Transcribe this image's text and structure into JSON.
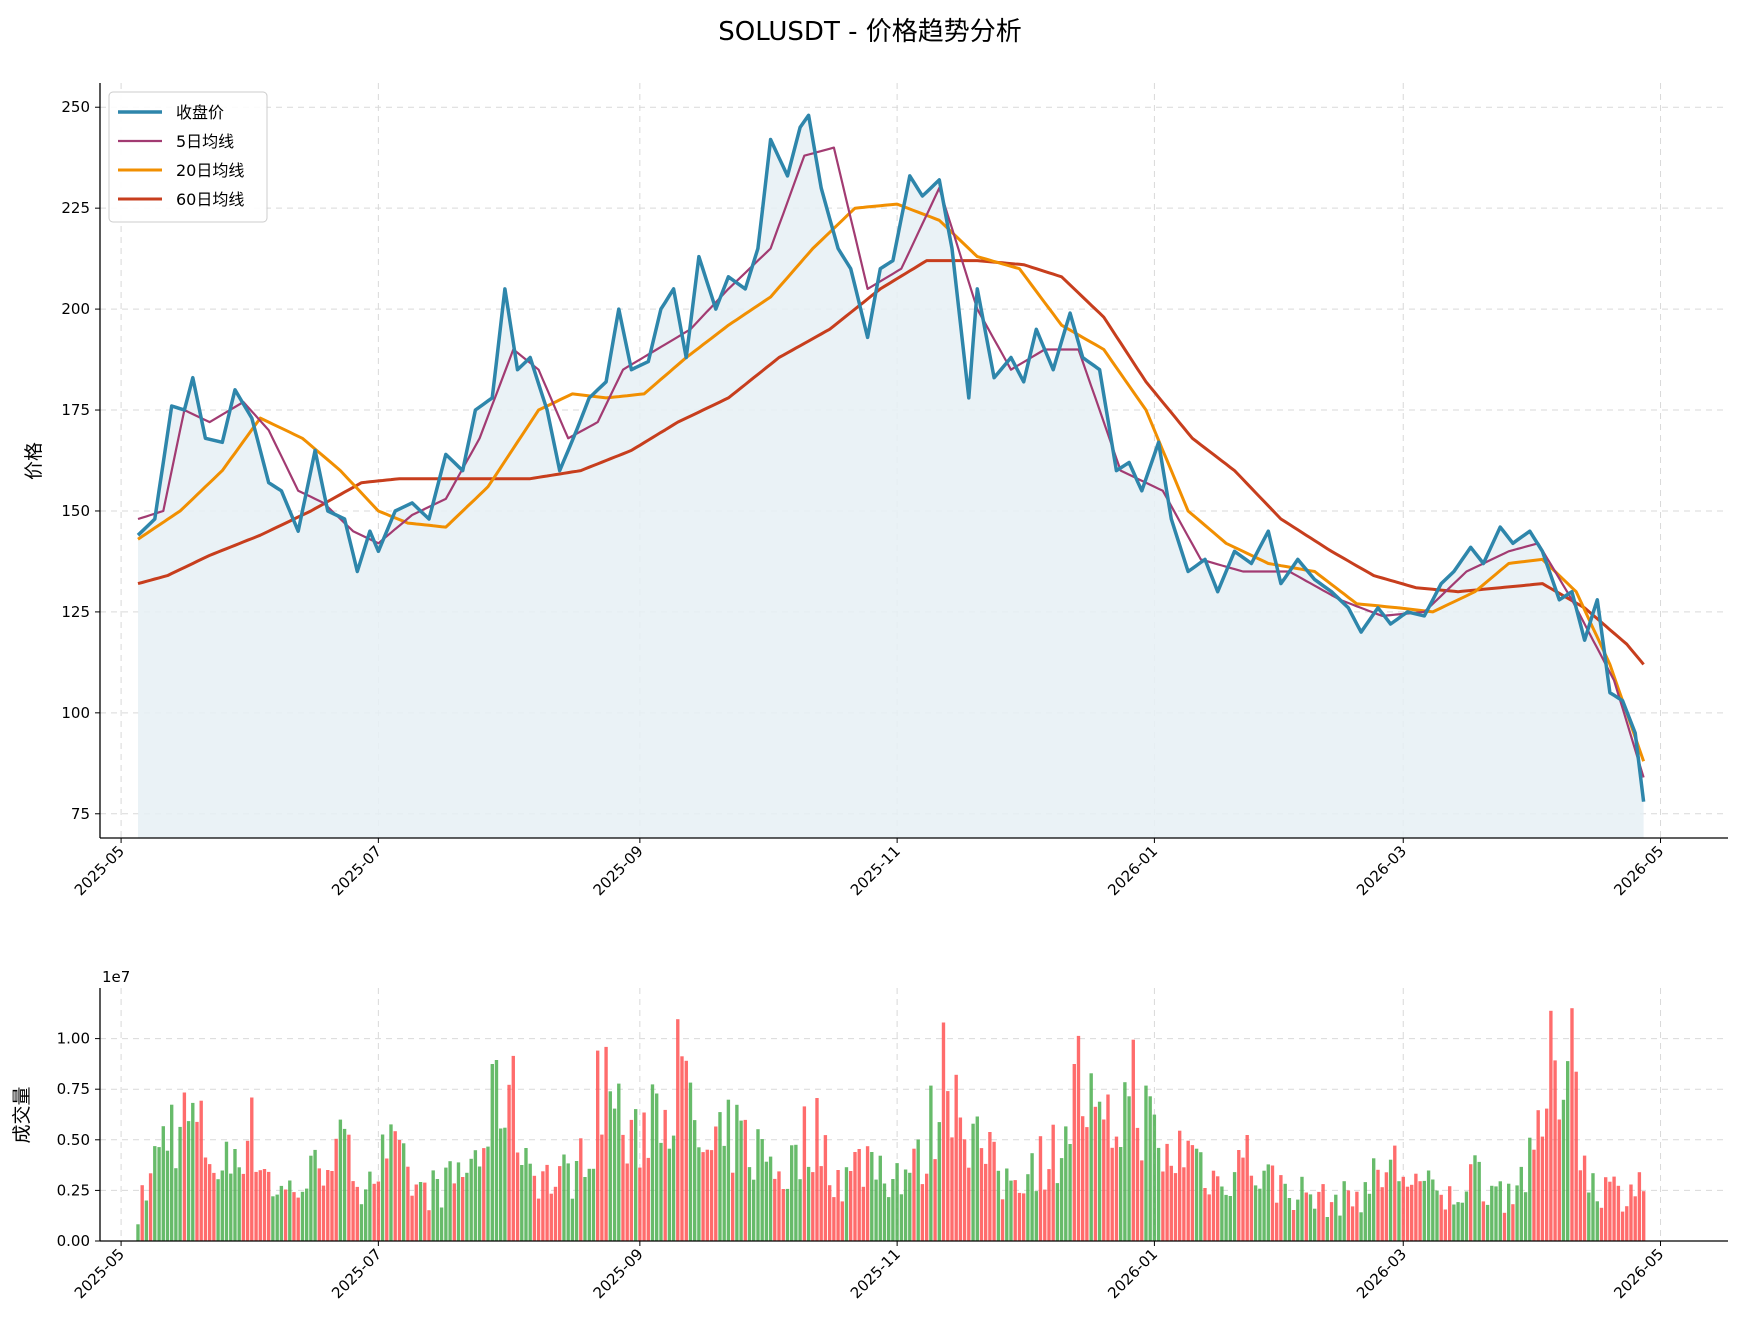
{
  "chart_data": [
    {
      "type": "line",
      "title": "SOLUSDT - 价格趋势分析",
      "xlabel": "",
      "ylabel": "价格",
      "x_range": [
        "2025-04-26",
        "2026-05-17"
      ],
      "ylim": [
        69,
        256
      ],
      "yticks": [
        75,
        100,
        125,
        150,
        175,
        200,
        225,
        250
      ],
      "xticks": [
        "2025-05",
        "2025-07",
        "2025-09",
        "2025-11",
        "2026-01",
        "2026-03",
        "2026-05"
      ],
      "grid": true,
      "legend_position": "top-left",
      "legend": [
        "收盘价",
        "5日均线",
        "20日均线",
        "60日均线"
      ],
      "colors": {
        "close": "#2e86ab",
        "ma5": "#a23b72",
        "ma20": "#f18f01",
        "ma60": "#c73e1d",
        "fill": "#e6f0f5"
      },
      "close_keypoints": [
        [
          "2025-05-05",
          144
        ],
        [
          "2025-05-09",
          148
        ],
        [
          "2025-05-13",
          176
        ],
        [
          "2025-05-16",
          175
        ],
        [
          "2025-05-18",
          183
        ],
        [
          "2025-05-21",
          168
        ],
        [
          "2025-05-25",
          167
        ],
        [
          "2025-05-28",
          180
        ],
        [
          "2025-06-01",
          173
        ],
        [
          "2025-06-05",
          157
        ],
        [
          "2025-06-08",
          155
        ],
        [
          "2025-06-12",
          145
        ],
        [
          "2025-06-16",
          165
        ],
        [
          "2025-06-19",
          150
        ],
        [
          "2025-06-23",
          148
        ],
        [
          "2025-06-26",
          135
        ],
        [
          "2025-06-29",
          145
        ],
        [
          "2025-07-01",
          140
        ],
        [
          "2025-07-05",
          150
        ],
        [
          "2025-07-09",
          152
        ],
        [
          "2025-07-13",
          148
        ],
        [
          "2025-07-17",
          164
        ],
        [
          "2025-07-21",
          160
        ],
        [
          "2025-07-24",
          175
        ],
        [
          "2025-07-28",
          178
        ],
        [
          "2025-07-31",
          205
        ],
        [
          "2025-08-03",
          185
        ],
        [
          "2025-08-06",
          188
        ],
        [
          "2025-08-10",
          175
        ],
        [
          "2025-08-13",
          160
        ],
        [
          "2025-08-17",
          170
        ],
        [
          "2025-08-20",
          178
        ],
        [
          "2025-08-24",
          182
        ],
        [
          "2025-08-27",
          200
        ],
        [
          "2025-08-30",
          185
        ],
        [
          "2025-09-03",
          187
        ],
        [
          "2025-09-06",
          200
        ],
        [
          "2025-09-09",
          205
        ],
        [
          "2025-09-12",
          188
        ],
        [
          "2025-09-15",
          213
        ],
        [
          "2025-09-19",
          200
        ],
        [
          "2025-09-22",
          208
        ],
        [
          "2025-09-26",
          205
        ],
        [
          "2025-09-29",
          215
        ],
        [
          "2025-10-02",
          242
        ],
        [
          "2025-10-06",
          233
        ],
        [
          "2025-10-09",
          245
        ],
        [
          "2025-10-11",
          248
        ],
        [
          "2025-10-14",
          230
        ],
        [
          "2025-10-18",
          215
        ],
        [
          "2025-10-21",
          210
        ],
        [
          "2025-10-25",
          193
        ],
        [
          "2025-10-28",
          210
        ],
        [
          "2025-10-31",
          212
        ],
        [
          "2025-11-04",
          233
        ],
        [
          "2025-11-07",
          228
        ],
        [
          "2025-11-11",
          232
        ],
        [
          "2025-11-14",
          215
        ],
        [
          "2025-11-18",
          178
        ],
        [
          "2025-11-20",
          205
        ],
        [
          "2025-11-24",
          183
        ],
        [
          "2025-11-28",
          188
        ],
        [
          "2025-12-01",
          182
        ],
        [
          "2025-12-04",
          195
        ],
        [
          "2025-12-08",
          185
        ],
        [
          "2025-12-12",
          199
        ],
        [
          "2025-12-15",
          188
        ],
        [
          "2025-12-19",
          185
        ],
        [
          "2025-12-23",
          160
        ],
        [
          "2025-12-26",
          162
        ],
        [
          "2025-12-29",
          155
        ],
        [
          "2026-01-02",
          167
        ],
        [
          "2026-01-05",
          148
        ],
        [
          "2026-01-09",
          135
        ],
        [
          "2026-01-13",
          138
        ],
        [
          "2026-01-16",
          130
        ],
        [
          "2026-01-20",
          140
        ],
        [
          "2026-01-24",
          137
        ],
        [
          "2026-01-28",
          145
        ],
        [
          "2026-01-31",
          132
        ],
        [
          "2026-02-04",
          138
        ],
        [
          "2026-02-08",
          133
        ],
        [
          "2026-02-12",
          130
        ],
        [
          "2026-02-16",
          126
        ],
        [
          "2026-02-19",
          120
        ],
        [
          "2026-02-23",
          126
        ],
        [
          "2026-02-26",
          122
        ],
        [
          "2026-03-02",
          125
        ],
        [
          "2026-03-06",
          124
        ],
        [
          "2026-03-10",
          132
        ],
        [
          "2026-03-13",
          135
        ],
        [
          "2026-03-17",
          141
        ],
        [
          "2026-03-20",
          137
        ],
        [
          "2026-03-24",
          146
        ],
        [
          "2026-03-27",
          142
        ],
        [
          "2026-03-31",
          145
        ],
        [
          "2026-04-03",
          140
        ],
        [
          "2026-04-07",
          128
        ],
        [
          "2026-04-10",
          130
        ],
        [
          "2026-04-13",
          118
        ],
        [
          "2026-04-16",
          128
        ],
        [
          "2026-04-19",
          105
        ],
        [
          "2026-04-22",
          103
        ],
        [
          "2026-04-25",
          95
        ],
        [
          "2026-04-27",
          78
        ]
      ],
      "ma5_keypoints": [
        [
          "2025-05-05",
          148
        ],
        [
          "2025-05-11",
          150
        ],
        [
          "2025-05-16",
          175
        ],
        [
          "2025-05-22",
          172
        ],
        [
          "2025-05-30",
          177
        ],
        [
          "2025-06-05",
          170
        ],
        [
          "2025-06-12",
          155
        ],
        [
          "2025-06-18",
          152
        ],
        [
          "2025-06-25",
          145
        ],
        [
          "2025-07-01",
          142
        ],
        [
          "2025-07-09",
          149
        ],
        [
          "2025-07-17",
          153
        ],
        [
          "2025-07-25",
          168
        ],
        [
          "2025-08-02",
          190
        ],
        [
          "2025-08-08",
          185
        ],
        [
          "2025-08-15",
          168
        ],
        [
          "2025-08-22",
          172
        ],
        [
          "2025-08-28",
          185
        ],
        [
          "2025-09-05",
          190
        ],
        [
          "2025-09-13",
          195
        ],
        [
          "2025-09-22",
          205
        ],
        [
          "2025-10-02",
          215
        ],
        [
          "2025-10-10",
          238
        ],
        [
          "2025-10-17",
          240
        ],
        [
          "2025-10-25",
          205
        ],
        [
          "2025-11-02",
          210
        ],
        [
          "2025-11-11",
          230
        ],
        [
          "2025-11-20",
          200
        ],
        [
          "2025-11-28",
          185
        ],
        [
          "2025-12-06",
          190
        ],
        [
          "2025-12-14",
          190
        ],
        [
          "2025-12-24",
          160
        ],
        [
          "2026-01-03",
          155
        ],
        [
          "2026-01-12",
          138
        ],
        [
          "2026-01-22",
          135
        ],
        [
          "2026-02-02",
          135
        ],
        [
          "2026-02-14",
          128
        ],
        [
          "2026-02-24",
          124
        ],
        [
          "2026-03-06",
          125
        ],
        [
          "2026-03-16",
          135
        ],
        [
          "2026-03-26",
          140
        ],
        [
          "2026-04-02",
          142
        ],
        [
          "2026-04-10",
          128
        ],
        [
          "2026-04-20",
          108
        ],
        [
          "2026-04-27",
          84
        ]
      ],
      "ma20_keypoints": [
        [
          "2025-05-05",
          143
        ],
        [
          "2025-05-15",
          150
        ],
        [
          "2025-05-25",
          160
        ],
        [
          "2025-06-03",
          173
        ],
        [
          "2025-06-13",
          168
        ],
        [
          "2025-06-22",
          160
        ],
        [
          "2025-07-01",
          150
        ],
        [
          "2025-07-08",
          147
        ],
        [
          "2025-07-17",
          146
        ],
        [
          "2025-07-27",
          156
        ],
        [
          "2025-08-08",
          175
        ],
        [
          "2025-08-16",
          179
        ],
        [
          "2025-08-24",
          178
        ],
        [
          "2025-09-02",
          179
        ],
        [
          "2025-09-12",
          188
        ],
        [
          "2025-09-22",
          196
        ],
        [
          "2025-10-02",
          203
        ],
        [
          "2025-10-12",
          215
        ],
        [
          "2025-10-22",
          225
        ],
        [
          "2025-11-01",
          226
        ],
        [
          "2025-11-11",
          222
        ],
        [
          "2025-11-20",
          213
        ],
        [
          "2025-11-30",
          210
        ],
        [
          "2025-12-10",
          196
        ],
        [
          "2025-12-20",
          190
        ],
        [
          "2025-12-30",
          175
        ],
        [
          "2026-01-09",
          150
        ],
        [
          "2026-01-18",
          142
        ],
        [
          "2026-01-28",
          137
        ],
        [
          "2026-02-08",
          135
        ],
        [
          "2026-02-18",
          127
        ],
        [
          "2026-02-28",
          126
        ],
        [
          "2026-03-08",
          125
        ],
        [
          "2026-03-18",
          130
        ],
        [
          "2026-03-26",
          137
        ],
        [
          "2026-04-03",
          138
        ],
        [
          "2026-04-11",
          130
        ],
        [
          "2026-04-19",
          112
        ],
        [
          "2026-04-27",
          88
        ]
      ],
      "ma60_keypoints": [
        [
          "2025-05-05",
          132
        ],
        [
          "2025-05-12",
          134
        ],
        [
          "2025-05-22",
          139
        ],
        [
          "2025-06-03",
          144
        ],
        [
          "2025-06-15",
          150
        ],
        [
          "2025-06-27",
          157
        ],
        [
          "2025-07-06",
          158
        ],
        [
          "2025-07-15",
          158
        ],
        [
          "2025-07-25",
          158
        ],
        [
          "2025-08-06",
          158
        ],
        [
          "2025-08-18",
          160
        ],
        [
          "2025-08-30",
          165
        ],
        [
          "2025-09-10",
          172
        ],
        [
          "2025-09-22",
          178
        ],
        [
          "2025-10-04",
          188
        ],
        [
          "2025-10-16",
          195
        ],
        [
          "2025-10-28",
          205
        ],
        [
          "2025-11-08",
          212
        ],
        [
          "2025-11-20",
          212
        ],
        [
          "2025-12-01",
          211
        ],
        [
          "2025-12-10",
          208
        ],
        [
          "2025-12-20",
          198
        ],
        [
          "2025-12-30",
          182
        ],
        [
          "2026-01-10",
          168
        ],
        [
          "2026-01-20",
          160
        ],
        [
          "2026-01-31",
          148
        ],
        [
          "2026-02-12",
          140
        ],
        [
          "2026-02-22",
          134
        ],
        [
          "2026-03-04",
          131
        ],
        [
          "2026-03-14",
          130
        ],
        [
          "2026-03-24",
          131
        ],
        [
          "2026-04-03",
          132
        ],
        [
          "2026-04-13",
          126
        ],
        [
          "2026-04-23",
          117
        ],
        [
          "2026-04-27",
          112
        ]
      ]
    },
    {
      "type": "bar",
      "title": "",
      "xlabel": "",
      "ylabel": "成交量",
      "offset_label": "1e7",
      "ylim": [
        0,
        1.25
      ],
      "yticks": [
        "0.00",
        "0.25",
        "0.50",
        "0.75",
        "1.00"
      ],
      "ytick_values": [
        0,
        0.25,
        0.5,
        0.75,
        1.0
      ],
      "xticks": [
        "2025-05",
        "2025-07",
        "2025-09",
        "2025-11",
        "2026-01",
        "2026-03",
        "2026-05"
      ],
      "grid": true,
      "colors": {
        "up": "#4caf50",
        "down": "#ff5252"
      },
      "volume_keypoints": [
        [
          "2025-05-05",
          0.15
        ],
        [
          "2025-05-12",
          0.6
        ],
        [
          "2025-05-18",
          0.62
        ],
        [
          "2025-05-25",
          0.35
        ],
        [
          "2025-05-31",
          0.6
        ],
        [
          "2025-06-07",
          0.25
        ],
        [
          "2025-06-14",
          0.3
        ],
        [
          "2025-06-20",
          0.52
        ],
        [
          "2025-06-27",
          0.33
        ],
        [
          "2025-07-04",
          0.45
        ],
        [
          "2025-07-11",
          0.25
        ],
        [
          "2025-07-18",
          0.3
        ],
        [
          "2025-07-25",
          0.45
        ],
        [
          "2025-07-31",
          0.85
        ],
        [
          "2025-08-06",
          0.4
        ],
        [
          "2025-08-12",
          0.3
        ],
        [
          "2025-08-18",
          0.4
        ],
        [
          "2025-08-24",
          0.88
        ],
        [
          "2025-08-30",
          0.45
        ],
        [
          "2025-09-05",
          0.78
        ],
        [
          "2025-09-10",
          0.85
        ],
        [
          "2025-09-17",
          0.4
        ],
        [
          "2025-09-23",
          0.55
        ],
        [
          "2025-09-30",
          0.45
        ],
        [
          "2025-10-06",
          0.35
        ],
        [
          "2025-10-12",
          0.6
        ],
        [
          "2025-10-19",
          0.3
        ],
        [
          "2025-10-25",
          0.45
        ],
        [
          "2025-10-31",
          0.35
        ],
        [
          "2025-11-07",
          0.4
        ],
        [
          "2025-11-13",
          0.96
        ],
        [
          "2025-11-19",
          0.55
        ],
        [
          "2025-11-26",
          0.3
        ],
        [
          "2025-12-02",
          0.4
        ],
        [
          "2025-12-08",
          0.45
        ],
        [
          "2025-12-14",
          0.82
        ],
        [
          "2025-12-20",
          0.5
        ],
        [
          "2025-12-27",
          0.82
        ],
        [
          "2026-01-03",
          0.4
        ],
        [
          "2026-01-09",
          0.5
        ],
        [
          "2026-01-16",
          0.3
        ],
        [
          "2026-01-22",
          0.45
        ],
        [
          "2026-01-29",
          0.3
        ],
        [
          "2026-02-05",
          0.25
        ],
        [
          "2026-02-12",
          0.2
        ],
        [
          "2026-02-19",
          0.25
        ],
        [
          "2026-02-26",
          0.4
        ],
        [
          "2026-03-05",
          0.3
        ],
        [
          "2026-03-11",
          0.2
        ],
        [
          "2026-03-18",
          0.35
        ],
        [
          "2026-03-25",
          0.25
        ],
        [
          "2026-04-01",
          0.4
        ],
        [
          "2026-04-05",
          0.85
        ],
        [
          "2026-04-08",
          1.0
        ],
        [
          "2026-04-10",
          1.17
        ],
        [
          "2026-04-13",
          0.35
        ],
        [
          "2026-04-16",
          0.3
        ],
        [
          "2026-04-21",
          0.25
        ],
        [
          "2026-04-27",
          0.33
        ]
      ]
    }
  ]
}
